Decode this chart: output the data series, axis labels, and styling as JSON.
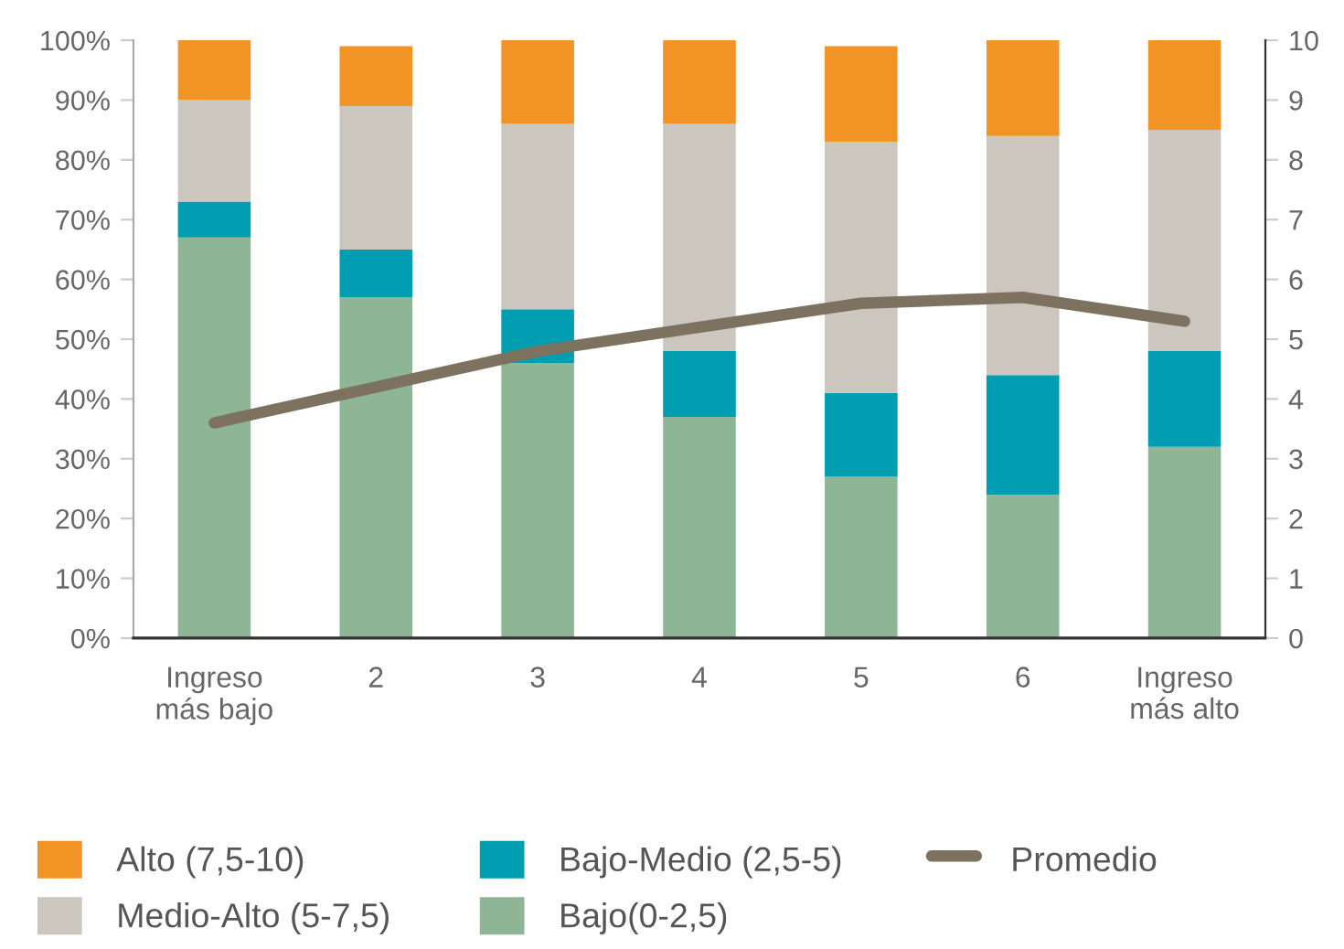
{
  "chart_data": {
    "type": "bar",
    "stacked": true,
    "categories": [
      "Ingreso\nmás bajo",
      "2",
      "3",
      "4",
      "5",
      "6",
      "Ingreso\nmás alto"
    ],
    "series": [
      {
        "name": "Bajo(0-2,5)",
        "color": "#8db596",
        "values": [
          67,
          57,
          46,
          37,
          27,
          24,
          32
        ]
      },
      {
        "name": "Bajo-Medio (2,5-5)",
        "color": "#009eb0",
        "values": [
          6,
          8,
          9,
          11,
          14,
          20,
          16
        ]
      },
      {
        "name": "Medio-Alto (5-7,5)",
        "color": "#cbc7bf",
        "values": [
          17,
          24,
          31,
          38,
          42,
          40,
          37
        ]
      },
      {
        "name": "Alto (7,5-10)",
        "color": "#f29325",
        "values": [
          10,
          10,
          14,
          14,
          16,
          16,
          15
        ]
      },
      {
        "name": "Promedio",
        "type": "line",
        "axis": "y2",
        "color": "#7d7260",
        "values": [
          3.6,
          4.2,
          4.8,
          5.2,
          5.6,
          5.7,
          5.3
        ]
      }
    ],
    "ylim": [
      0,
      100
    ],
    "yticks": [
      {
        "value": 0,
        "label": "0%"
      },
      {
        "value": 10,
        "label": "10%"
      },
      {
        "value": 20,
        "label": "20%"
      },
      {
        "value": 30,
        "label": "30%"
      },
      {
        "value": 40,
        "label": "40%"
      },
      {
        "value": 50,
        "label": "50%"
      },
      {
        "value": 60,
        "label": "60%"
      },
      {
        "value": 70,
        "label": "70%"
      },
      {
        "value": 80,
        "label": "80%"
      },
      {
        "value": 90,
        "label": "90%"
      },
      {
        "value": 100,
        "label": "100%"
      }
    ],
    "y2lim": [
      0,
      10
    ],
    "y2ticks": [
      0,
      1,
      2,
      3,
      4,
      5,
      6,
      7,
      8,
      9,
      10
    ],
    "legend": "bottom",
    "grid": false
  }
}
